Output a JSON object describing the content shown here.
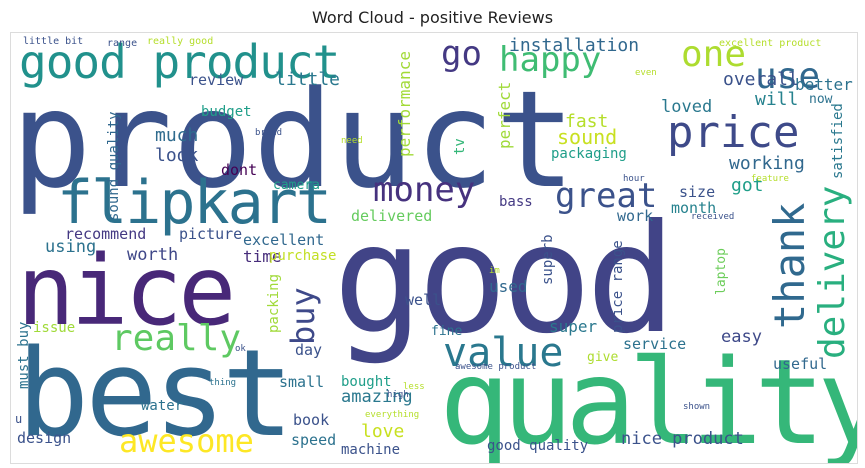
{
  "title": "Word Cloud - positive Reviews",
  "words": [
    {
      "text": "product",
      "color": "#3b528b"
    },
    {
      "text": "good",
      "color": "#414487"
    },
    {
      "text": "best",
      "color": "#31688e"
    },
    {
      "text": "quality",
      "color": "#35b779"
    },
    {
      "text": "nice",
      "color": "#482878"
    },
    {
      "text": "flipkart",
      "color": "#2c728e"
    },
    {
      "text": "good product",
      "color": "#21918c"
    },
    {
      "text": "price",
      "color": "#3e4a89"
    },
    {
      "text": "money",
      "color": "#46327e"
    },
    {
      "text": "great",
      "color": "#3b528b"
    },
    {
      "text": "value",
      "color": "#2a788e"
    },
    {
      "text": "really",
      "color": "#5ec962"
    },
    {
      "text": "awesome",
      "color": "#fde725"
    },
    {
      "text": "thank",
      "color": "#30698e"
    },
    {
      "text": "delivery",
      "color": "#29af7f"
    },
    {
      "text": "buy",
      "color": "#3e4989"
    },
    {
      "text": "one",
      "color": "#addc30"
    },
    {
      "text": "happy",
      "color": "#3fbc73"
    },
    {
      "text": "use",
      "color": "#31688e"
    },
    {
      "text": "go",
      "color": "#443983"
    },
    {
      "text": "installation",
      "color": "#31688e"
    },
    {
      "text": "better",
      "color": "#2c728e"
    },
    {
      "text": "review",
      "color": "#3b528b"
    },
    {
      "text": "little",
      "color": "#2a788e"
    },
    {
      "text": "overall",
      "color": "#3b528b"
    },
    {
      "text": "will",
      "color": "#26828e"
    },
    {
      "text": "now",
      "color": "#2c728e"
    },
    {
      "text": "loved",
      "color": "#2a788e"
    },
    {
      "text": "performance",
      "color": "#a2da37"
    },
    {
      "text": "perfect",
      "color": "#a0da39"
    },
    {
      "text": "tv",
      "color": "#35b779"
    },
    {
      "text": "budget",
      "color": "#1f9e89"
    },
    {
      "text": "much",
      "color": "#2f6b8e"
    },
    {
      "text": "look",
      "color": "#3b528b"
    },
    {
      "text": "dont",
      "color": "#440154"
    },
    {
      "text": "sound quality",
      "color": "#31688e"
    },
    {
      "text": "camera",
      "color": "#1f9e89"
    },
    {
      "text": "fast",
      "color": "#b5de2b"
    },
    {
      "text": "sound",
      "color": "#c8e020"
    },
    {
      "text": "packaging",
      "color": "#1f9e89"
    },
    {
      "text": "satisfied",
      "color": "#2a788e"
    },
    {
      "text": "working",
      "color": "#31688e"
    },
    {
      "text": "got",
      "color": "#1f9e89"
    },
    {
      "text": "size",
      "color": "#3b528b"
    },
    {
      "text": "month",
      "color": "#26828e"
    },
    {
      "text": "work",
      "color": "#31688e"
    },
    {
      "text": "bass",
      "color": "#443983"
    },
    {
      "text": "delivered",
      "color": "#65cb5e"
    },
    {
      "text": "recommend",
      "color": "#443983"
    },
    {
      "text": "picture",
      "color": "#3b528b"
    },
    {
      "text": "excellent",
      "color": "#31688e"
    },
    {
      "text": "using",
      "color": "#2c728e"
    },
    {
      "text": "worth",
      "color": "#3f4788"
    },
    {
      "text": "time",
      "color": "#472d7b"
    },
    {
      "text": "purchase",
      "color": "#c2df23"
    },
    {
      "text": "superb",
      "color": "#3b528b"
    },
    {
      "text": "laptop",
      "color": "#6ccd5a"
    },
    {
      "text": "price range",
      "color": "#3b528b"
    },
    {
      "text": "used",
      "color": "#31688e"
    },
    {
      "text": "well",
      "color": "#3b528b"
    },
    {
      "text": "super",
      "color": "#2a788e"
    },
    {
      "text": "easy",
      "color": "#3e4989"
    },
    {
      "text": "service",
      "color": "#2c728e"
    },
    {
      "text": "give",
      "color": "#addc30"
    },
    {
      "text": "useful",
      "color": "#31688e"
    },
    {
      "text": "fine",
      "color": "#2c728e"
    },
    {
      "text": "packing",
      "color": "#a0da39"
    },
    {
      "text": "day",
      "color": "#3b528b"
    },
    {
      "text": "issue",
      "color": "#a0da39"
    },
    {
      "text": "must buy",
      "color": "#2c728e"
    },
    {
      "text": "amazing",
      "color": "#2a788e"
    },
    {
      "text": "small",
      "color": "#2c728e"
    },
    {
      "text": "bought",
      "color": "#1f9e89"
    },
    {
      "text": "book",
      "color": "#3b528b"
    },
    {
      "text": "love",
      "color": "#c8e020"
    },
    {
      "text": "water",
      "color": "#2c728e"
    },
    {
      "text": "design",
      "color": "#3b528b"
    },
    {
      "text": "speed",
      "color": "#2c728e"
    },
    {
      "text": "machine",
      "color": "#3b528b"
    },
    {
      "text": "good quality",
      "color": "#3b528b"
    },
    {
      "text": "nice product",
      "color": "#3b528b"
    },
    {
      "text": "little bit",
      "color": "#3b528b"
    },
    {
      "text": "range",
      "color": "#3b528b"
    },
    {
      "text": "really good",
      "color": "#b5de2b"
    },
    {
      "text": "excellent product",
      "color": "#b5de2b"
    },
    {
      "text": "even",
      "color": "#b5de2b"
    },
    {
      "text": "brand",
      "color": "#3b528b"
    },
    {
      "text": "need",
      "color": "#b5de2b"
    },
    {
      "text": "hour",
      "color": "#3b528b"
    },
    {
      "text": "feature",
      "color": "#b5de2b"
    },
    {
      "text": "received",
      "color": "#3b528b"
    },
    {
      "text": "im",
      "color": "#b5de2b"
    },
    {
      "text": "ok",
      "color": "#3b528b"
    },
    {
      "text": "thing",
      "color": "#2c728e"
    },
    {
      "text": "high",
      "color": "#3b528b"
    },
    {
      "text": "less",
      "color": "#b5de2b"
    },
    {
      "text": "everything",
      "color": "#b5de2b"
    },
    {
      "text": "awesome product",
      "color": "#3b528b"
    },
    {
      "text": "shown",
      "color": "#3b528b"
    },
    {
      "text": "u",
      "color": "#3b528b"
    }
  ]
}
